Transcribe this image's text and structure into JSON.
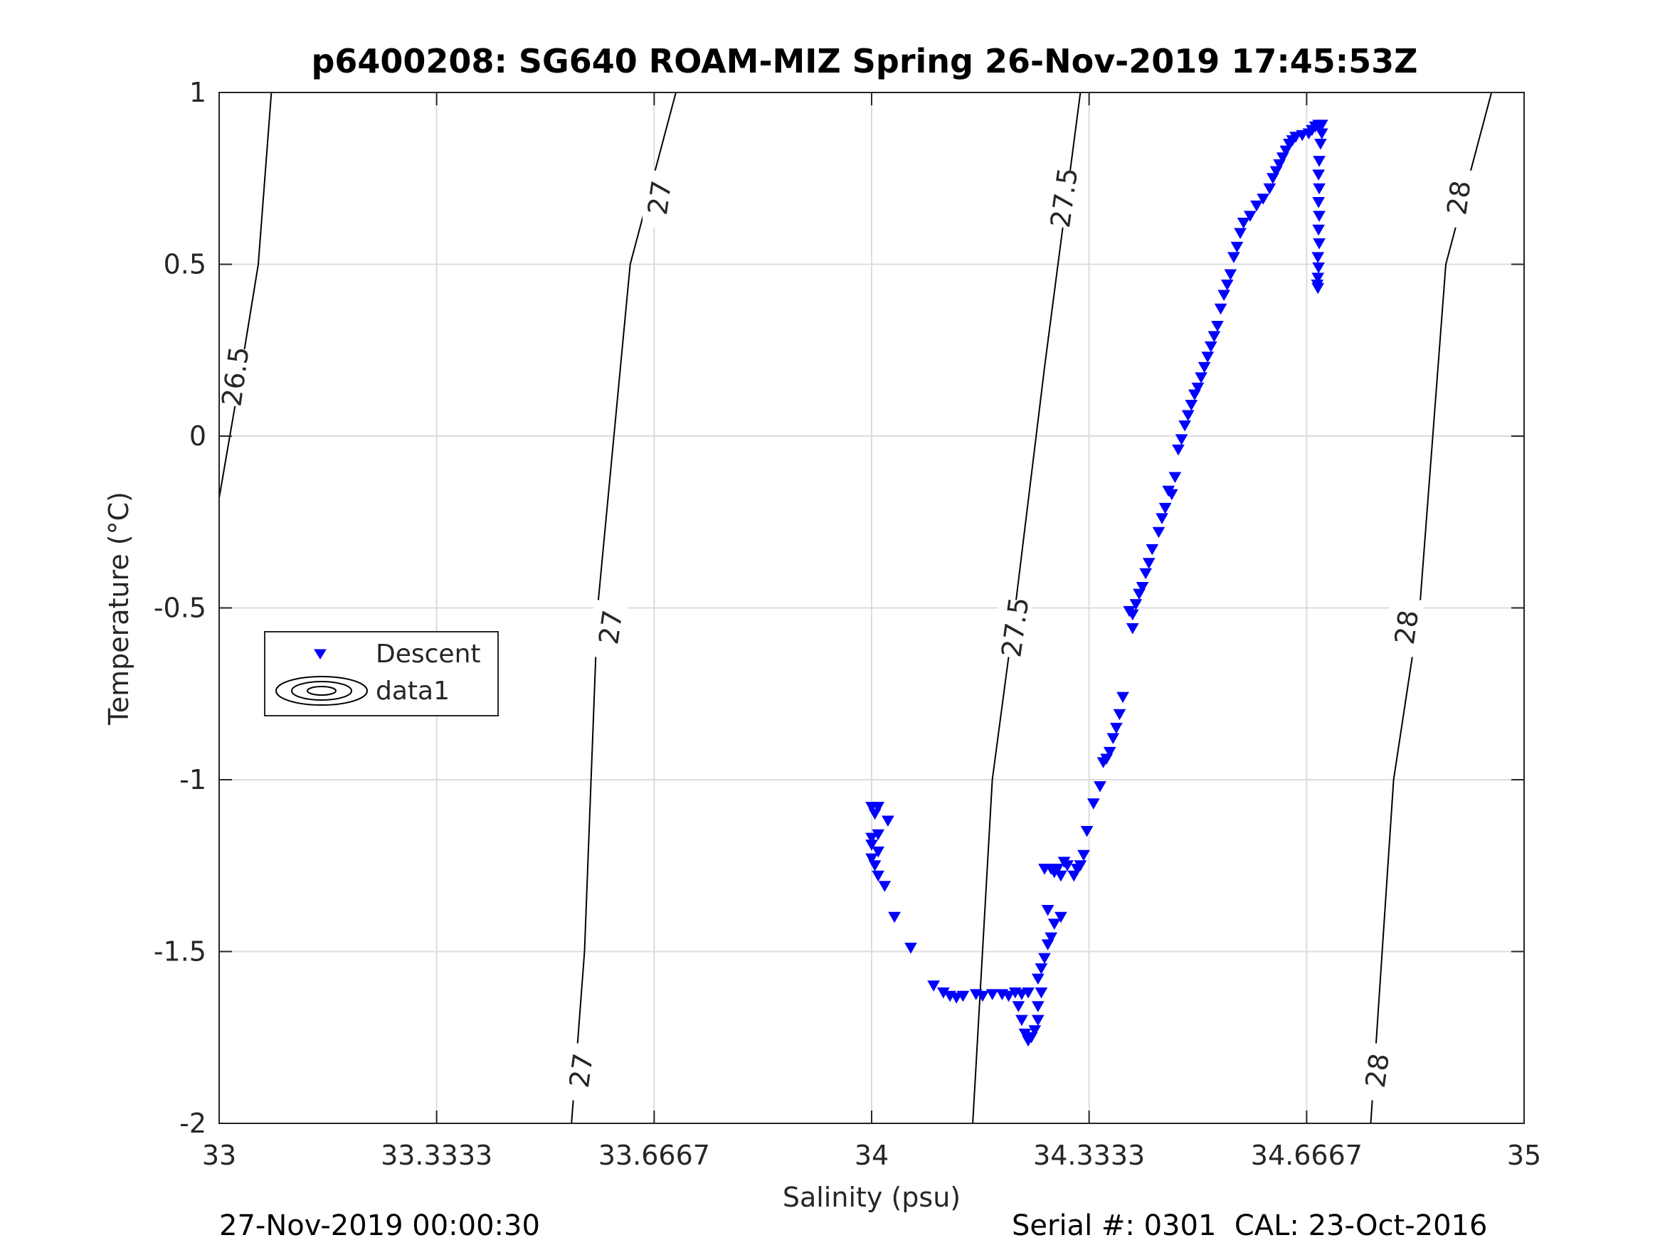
{
  "chart_data": {
    "type": "scatter",
    "title": "p6400208: SG640 ROAM-MIZ Spring 26-Nov-2019 17:45:53Z",
    "xlabel": "Salinity (psu)",
    "ylabel": "Temperature (°C)",
    "xlim": [
      33,
      35
    ],
    "ylim": [
      -2,
      1
    ],
    "xticks": [
      33,
      33.3333,
      33.6667,
      34,
      34.3333,
      34.6667,
      35
    ],
    "xtick_labels": [
      "33",
      "33.3333",
      "33.6667",
      "34",
      "34.3333",
      "34.6667",
      "35"
    ],
    "yticks": [
      -2,
      -1.5,
      -1,
      -0.5,
      0,
      0.5,
      1
    ],
    "ytick_labels": [
      "-2",
      "-1.5",
      "-1",
      "-0.5",
      "0",
      "0.5",
      "1"
    ],
    "grid": true,
    "legend_position": "middle-left",
    "legend": [
      {
        "label": "Descent",
        "marker": "triangle-down",
        "color": "#0000ff"
      },
      {
        "label": "data1",
        "marker": "contour-ellipses",
        "color": "#000000"
      }
    ],
    "series": [
      {
        "name": "Descent",
        "marker": "triangle-down",
        "color": "#0000ff",
        "points": [
          [
            34.0,
            -1.08
          ],
          [
            34.01,
            -1.08
          ],
          [
            34.005,
            -1.1
          ],
          [
            34.0,
            -1.17
          ],
          [
            34.01,
            -1.16
          ],
          [
            34.0,
            -1.19
          ],
          [
            34.01,
            -1.21
          ],
          [
            34.0,
            -1.23
          ],
          [
            34.005,
            -1.25
          ],
          [
            34.025,
            -1.12
          ],
          [
            34.01,
            -1.28
          ],
          [
            34.02,
            -1.31
          ],
          [
            34.035,
            -1.4
          ],
          [
            34.06,
            -1.49
          ],
          [
            34.095,
            -1.6
          ],
          [
            34.11,
            -1.62
          ],
          [
            34.12,
            -1.63
          ],
          [
            34.13,
            -1.635
          ],
          [
            34.14,
            -1.63
          ],
          [
            34.16,
            -1.625
          ],
          [
            34.17,
            -1.63
          ],
          [
            34.185,
            -1.625
          ],
          [
            34.2,
            -1.625
          ],
          [
            34.21,
            -1.63
          ],
          [
            34.22,
            -1.62
          ],
          [
            34.23,
            -1.625
          ],
          [
            34.24,
            -1.62
          ],
          [
            34.225,
            -1.66
          ],
          [
            34.23,
            -1.7
          ],
          [
            34.235,
            -1.74
          ],
          [
            34.24,
            -1.76
          ],
          [
            34.245,
            -1.75
          ],
          [
            34.25,
            -1.73
          ],
          [
            34.255,
            -1.7
          ],
          [
            34.255,
            -1.66
          ],
          [
            34.26,
            -1.62
          ],
          [
            34.255,
            -1.58
          ],
          [
            34.26,
            -1.55
          ],
          [
            34.265,
            -1.52
          ],
          [
            34.27,
            -1.48
          ],
          [
            34.275,
            -1.46
          ],
          [
            34.28,
            -1.42
          ],
          [
            34.29,
            -1.4
          ],
          [
            34.27,
            -1.38
          ],
          [
            34.265,
            -1.26
          ],
          [
            34.275,
            -1.26
          ],
          [
            34.28,
            -1.27
          ],
          [
            34.285,
            -1.26
          ],
          [
            34.29,
            -1.28
          ],
          [
            34.295,
            -1.24
          ],
          [
            34.3,
            -1.25
          ],
          [
            34.31,
            -1.28
          ],
          [
            34.315,
            -1.26
          ],
          [
            34.32,
            -1.25
          ],
          [
            34.325,
            -1.22
          ],
          [
            34.33,
            -1.15
          ],
          [
            34.34,
            -1.07
          ],
          [
            34.35,
            -1.02
          ],
          [
            34.355,
            -0.95
          ],
          [
            34.36,
            -0.94
          ],
          [
            34.365,
            -0.92
          ],
          [
            34.37,
            -0.88
          ],
          [
            34.375,
            -0.85
          ],
          [
            34.38,
            -0.81
          ],
          [
            34.385,
            -0.76
          ],
          [
            34.395,
            -0.51
          ],
          [
            34.4,
            -0.52
          ],
          [
            34.405,
            -0.49
          ],
          [
            34.4,
            -0.56
          ],
          [
            34.41,
            -0.46
          ],
          [
            34.415,
            -0.44
          ],
          [
            34.42,
            -0.4
          ],
          [
            34.425,
            -0.37
          ],
          [
            34.43,
            -0.33
          ],
          [
            34.44,
            -0.28
          ],
          [
            34.445,
            -0.24
          ],
          [
            34.45,
            -0.21
          ],
          [
            34.455,
            -0.16
          ],
          [
            34.46,
            -0.17
          ],
          [
            34.465,
            -0.12
          ],
          [
            34.47,
            -0.04
          ],
          [
            34.475,
            -0.01
          ],
          [
            34.48,
            0.03
          ],
          [
            34.485,
            0.06
          ],
          [
            34.49,
            0.09
          ],
          [
            34.495,
            0.12
          ],
          [
            34.5,
            0.14
          ],
          [
            34.505,
            0.17
          ],
          [
            34.51,
            0.2
          ],
          [
            34.515,
            0.23
          ],
          [
            34.52,
            0.26
          ],
          [
            34.525,
            0.29
          ],
          [
            34.53,
            0.32
          ],
          [
            34.535,
            0.37
          ],
          [
            34.54,
            0.41
          ],
          [
            34.545,
            0.44
          ],
          [
            34.55,
            0.47
          ],
          [
            34.555,
            0.52
          ],
          [
            34.56,
            0.55
          ],
          [
            34.565,
            0.59
          ],
          [
            34.57,
            0.62
          ],
          [
            34.58,
            0.64
          ],
          [
            34.59,
            0.67
          ],
          [
            34.6,
            0.69
          ],
          [
            34.61,
            0.72
          ],
          [
            34.615,
            0.75
          ],
          [
            34.62,
            0.77
          ],
          [
            34.625,
            0.79
          ],
          [
            34.63,
            0.81
          ],
          [
            34.635,
            0.83
          ],
          [
            34.64,
            0.85
          ],
          [
            34.645,
            0.86
          ],
          [
            34.65,
            0.87
          ],
          [
            34.66,
            0.875
          ],
          [
            34.67,
            0.88
          ],
          [
            34.675,
            0.89
          ],
          [
            34.68,
            0.9
          ],
          [
            34.685,
            0.905
          ],
          [
            34.69,
            0.905
          ],
          [
            34.69,
            0.88
          ],
          [
            34.688,
            0.85
          ],
          [
            34.686,
            0.8
          ],
          [
            34.685,
            0.76
          ],
          [
            34.686,
            0.72
          ],
          [
            34.685,
            0.68
          ],
          [
            34.686,
            0.64
          ],
          [
            34.685,
            0.6
          ],
          [
            34.686,
            0.56
          ],
          [
            34.684,
            0.52
          ],
          [
            34.685,
            0.49
          ],
          [
            34.684,
            0.46
          ],
          [
            34.683,
            0.44
          ],
          [
            34.684,
            0.43
          ]
        ]
      }
    ],
    "contours": [
      {
        "label": "26.5",
        "points": [
          [
            33.0,
            -0.18
          ],
          [
            33.03,
            0.15
          ],
          [
            33.06,
            0.5
          ],
          [
            33.08,
            1.0
          ]
        ],
        "label_at": [
          33.025,
          0.17
        ]
      },
      {
        "label": "27",
        "points": [
          [
            33.54,
            -2.0
          ],
          [
            33.56,
            -1.5
          ],
          [
            33.58,
            -0.5
          ],
          [
            33.63,
            0.5
          ],
          [
            33.7,
            1.0
          ]
        ],
        "label_positions": [
          [
            33.555,
            -1.85
          ],
          [
            33.6,
            -0.56
          ],
          [
            33.675,
            0.69
          ]
        ]
      },
      {
        "label": "27.5",
        "points": [
          [
            34.155,
            -2.0
          ],
          [
            34.185,
            -1.0
          ],
          [
            34.22,
            -0.5
          ],
          [
            34.265,
            0.2
          ],
          [
            34.32,
            1.0
          ]
        ],
        "label_positions": [
          [
            34.22,
            -0.56
          ],
          [
            34.295,
            0.69
          ]
        ]
      },
      {
        "label": "28",
        "points": [
          [
            34.765,
            -2.0
          ],
          [
            34.8,
            -1.0
          ],
          [
            34.84,
            -0.5
          ],
          [
            34.88,
            0.5
          ],
          [
            34.95,
            1.0
          ]
        ],
        "label_positions": [
          [
            34.775,
            -1.85
          ],
          [
            34.82,
            -0.56
          ],
          [
            34.9,
            0.69
          ]
        ]
      }
    ]
  },
  "footer": {
    "left": "27-Nov-2019 00:00:30",
    "right": "Serial #: 0301  CAL: 23-Oct-2016"
  }
}
